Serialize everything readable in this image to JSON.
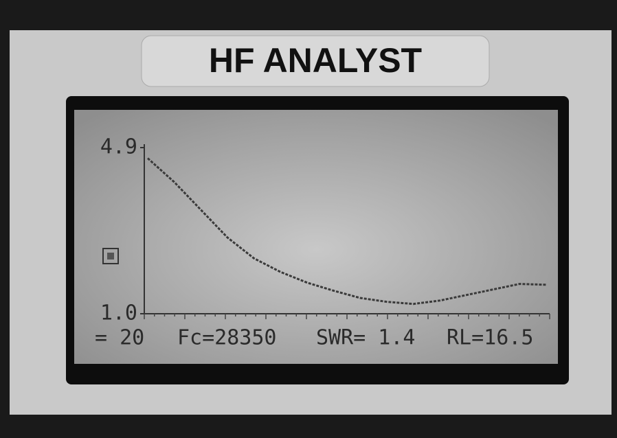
{
  "device_label": "HF ANALYST",
  "status_line": [
    "= 20",
    "Fc=28350",
    "SWR= 1.4",
    "RL=16.5"
  ],
  "chart_data": {
    "type": "line",
    "categories": [
      null,
      null,
      null,
      null,
      null,
      null,
      null,
      null,
      null,
      null,
      null,
      null,
      null,
      null,
      null,
      null
    ],
    "series": [
      {
        "color": "#3a3a3a",
        "values": [
          4.65,
          4.09,
          3.44,
          2.79,
          2.3,
          1.98,
          1.73,
          1.54,
          1.37,
          1.28,
          1.23,
          1.31,
          1.44,
          1.57,
          1.7,
          1.68
        ]
      }
    ],
    "ylim": [
      1.0,
      4.9
    ],
    "yticks": [
      {
        "value": 1.0,
        "label": "1.0"
      },
      4.9
    ]
  }
}
